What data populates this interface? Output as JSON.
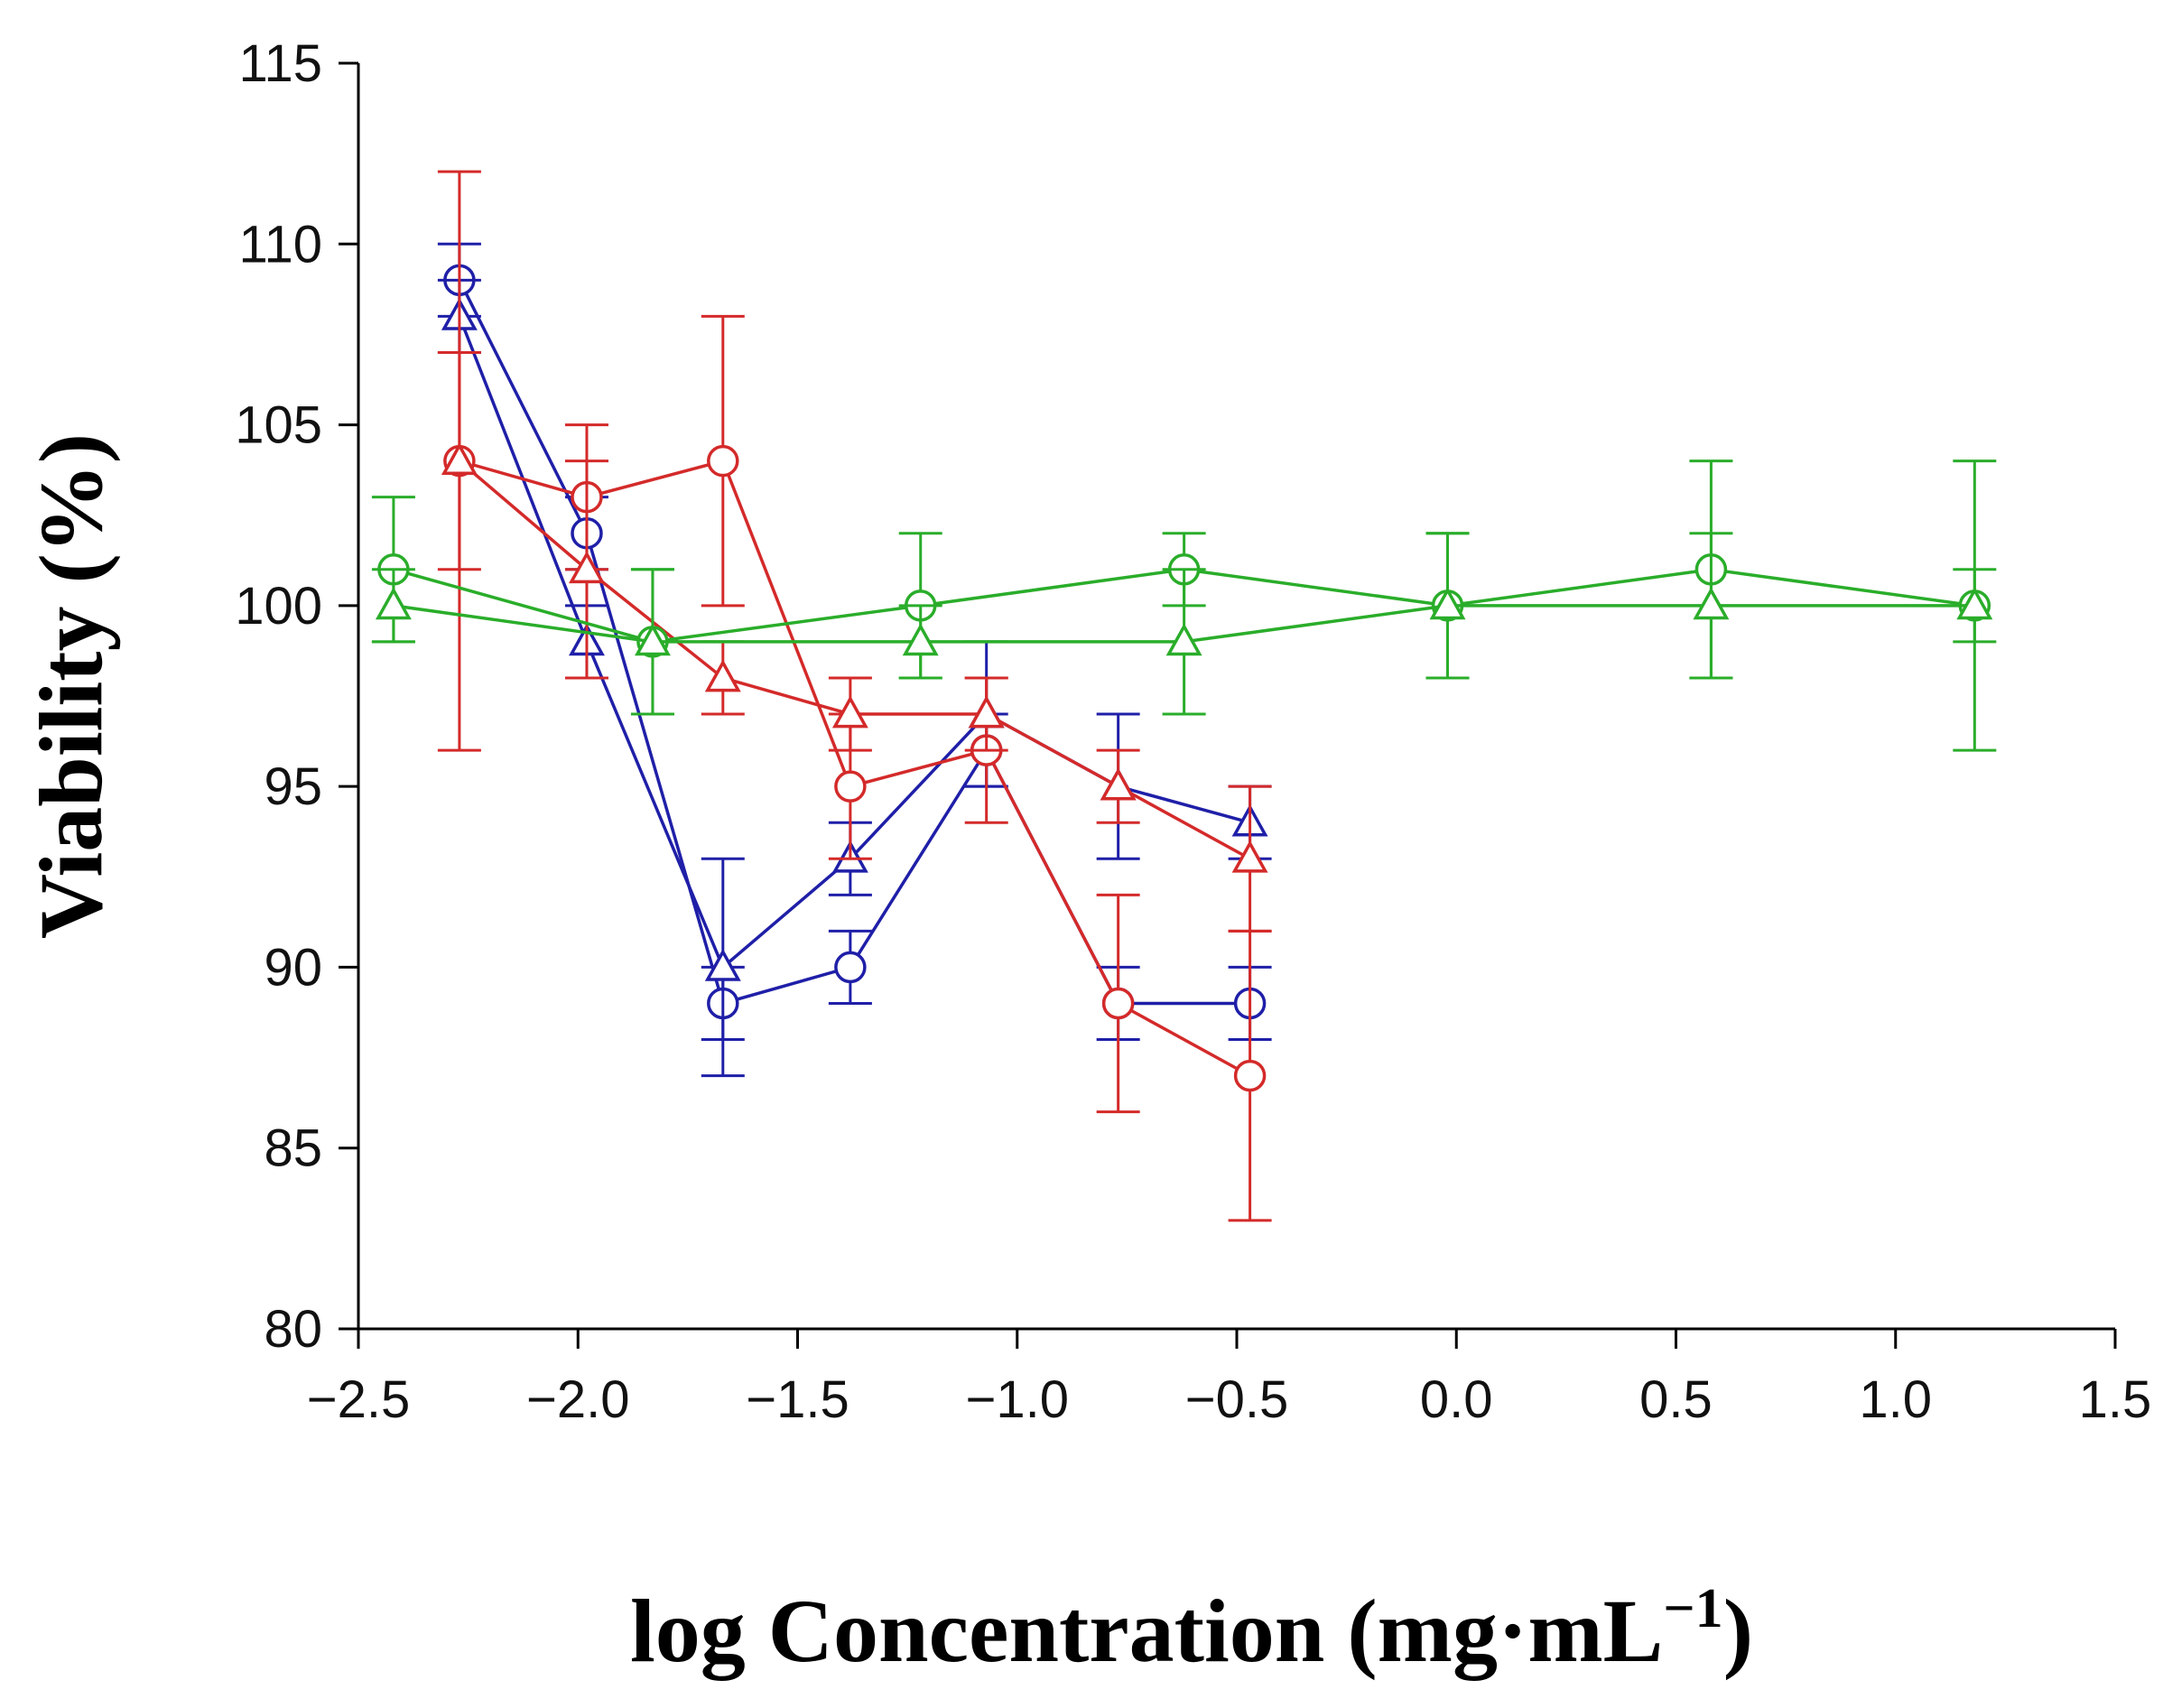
{
  "chart_data": {
    "type": "line",
    "title": "",
    "xlabel": "log Concentration (mg·mL",
    "xlabel_sup": "−1",
    "xlabel_close": ")",
    "ylabel": "Viability  (%)",
    "xlim": [
      -2.5,
      1.5
    ],
    "ylim": [
      80,
      115
    ],
    "xticks": [
      -2.5,
      -2.0,
      -1.5,
      -1.0,
      -0.5,
      0.0,
      0.5,
      1.0,
      1.5
    ],
    "xtick_labels": [
      "−2.5",
      "−2.0",
      "−1.5",
      "−1.0",
      "−0.5",
      "0.0",
      "0.5",
      "1.0",
      "1.5"
    ],
    "yticks": [
      80,
      85,
      90,
      95,
      100,
      105,
      110,
      115
    ],
    "ytick_labels": [
      "80",
      "85",
      "90",
      "95",
      "100",
      "105",
      "110",
      "115"
    ],
    "grid": false,
    "series": [
      {
        "name": "blue-circle",
        "color": "#1f1fa8",
        "marker": "circle",
        "x": [
          -2.27,
          -1.98,
          -1.67,
          -1.38,
          -1.07,
          -0.77,
          -0.47
        ],
        "y": [
          109,
          102,
          89,
          90,
          96,
          89,
          89
        ],
        "err": [
          1,
          1,
          1,
          1,
          1,
          1,
          1
        ]
      },
      {
        "name": "blue-triangle",
        "color": "#1f1fa8",
        "marker": "triangle",
        "x": [
          -2.27,
          -1.98,
          -1.67,
          -1.38,
          -1.07,
          -0.77,
          -0.47
        ],
        "y": [
          108,
          99,
          90,
          93,
          97,
          95,
          94
        ],
        "err": [
          1,
          1,
          3,
          1,
          2,
          2,
          1
        ]
      },
      {
        "name": "red-circle",
        "color": "#d42a2a",
        "marker": "circle",
        "x": [
          -2.27,
          -1.98,
          -1.67,
          -1.38,
          -1.07,
          -0.77,
          -0.47
        ],
        "y": [
          104,
          103,
          104,
          95,
          96,
          89,
          87
        ],
        "err": [
          3,
          2,
          4,
          2,
          2,
          3,
          4
        ]
      },
      {
        "name": "red-triangle",
        "color": "#d42a2a",
        "marker": "triangle",
        "x": [
          -2.27,
          -1.98,
          -1.67,
          -1.38,
          -1.07,
          -0.77,
          -0.47
        ],
        "y": [
          104,
          101,
          98,
          97,
          97,
          95,
          93
        ],
        "err": [
          8,
          3,
          1,
          1,
          1,
          1,
          2
        ]
      },
      {
        "name": "green-circle",
        "color": "#2aad2a",
        "marker": "circle",
        "x": [
          -2.42,
          -1.83,
          -1.22,
          -0.62,
          -0.02,
          0.58,
          1.18
        ],
        "y": [
          101,
          99,
          100,
          101,
          100,
          101,
          100
        ],
        "err": [
          2,
          2,
          2,
          1,
          2,
          3,
          4
        ]
      },
      {
        "name": "green-triangle",
        "color": "#2aad2a",
        "marker": "triangle",
        "x": [
          -2.42,
          -1.83,
          -1.22,
          -0.62,
          -0.02,
          0.58,
          1.18
        ],
        "y": [
          100,
          99,
          99,
          99,
          100,
          100,
          100
        ],
        "err": [
          1,
          2,
          1,
          2,
          2,
          2,
          1
        ]
      }
    ]
  }
}
